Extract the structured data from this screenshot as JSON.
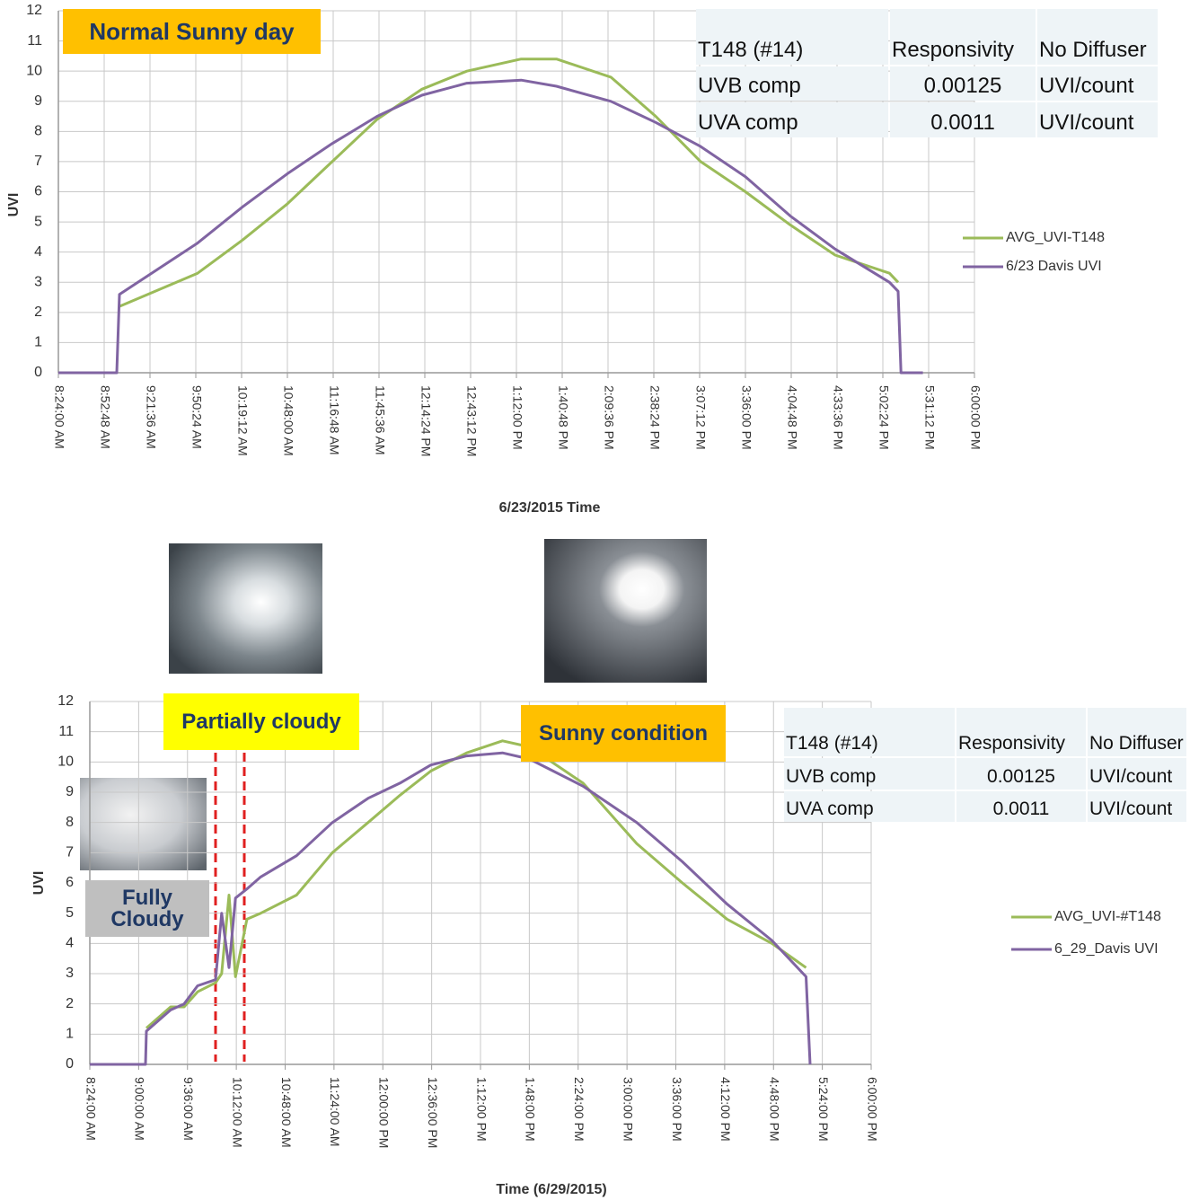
{
  "chart_data": [
    {
      "type": "line",
      "x_label": "6/23/2015 Time",
      "y_label": "UVI",
      "annotations": [
        {
          "text": "Normal Sunny day",
          "color": "#ffc000"
        }
      ],
      "table": {
        "header": [
          "T148 (#14)",
          "Responsivity",
          "No Diffuser"
        ],
        "rows": [
          [
            "UVB comp",
            0.00125,
            "UVI/count"
          ],
          [
            "UVA comp",
            0.0011,
            "UVI/count"
          ]
        ]
      },
      "legend": "right",
      "grid": true,
      "x": [
        8.4,
        9.012,
        9.04,
        9.859,
        10.33,
        10.8,
        11.27,
        11.74,
        12.21,
        12.68,
        13.25,
        13.62,
        14.19,
        14.66,
        15.13,
        15.6,
        16.07,
        16.54,
        17.11,
        17.2,
        17.23,
        17.46
      ],
      "series": [
        {
          "name": "AVG_UVI-T148",
          "color": "#9bbb59",
          "values": [
            null,
            null,
            2.2,
            3.3,
            4.4,
            5.6,
            7.0,
            8.4,
            9.4,
            10.0,
            10.4,
            10.4,
            9.8,
            8.5,
            7.0,
            6.0,
            4.9,
            3.9,
            3.3,
            3.0,
            null,
            null
          ]
        },
        {
          "name": "6/23 Davis UVI",
          "color": "#8064a2",
          "values": [
            0,
            0,
            2.6,
            4.3,
            5.5,
            6.6,
            7.6,
            8.5,
            9.2,
            9.6,
            9.7,
            9.5,
            9.0,
            8.3,
            7.5,
            6.5,
            5.2,
            4.1,
            3.0,
            2.7,
            0,
            0
          ]
        }
      ],
      "xlim": [
        8.4,
        18.0
      ],
      "xticks": [
        {
          "value": 8.4,
          "label": "8:24:00 AM"
        },
        {
          "value": 8.88,
          "label": "8:52:48 AM"
        },
        {
          "value": 9.36,
          "label": "9:21:36 AM"
        },
        {
          "value": 9.84,
          "label": "9:50:24 AM"
        },
        {
          "value": 10.32,
          "label": "10:19:12 AM"
        },
        {
          "value": 10.8,
          "label": "10:48:00 AM"
        },
        {
          "value": 11.28,
          "label": "11:16:48 AM"
        },
        {
          "value": 11.76,
          "label": "11:45:36 AM"
        },
        {
          "value": 12.24,
          "label": "12:14:24 PM"
        },
        {
          "value": 12.72,
          "label": "12:43:12 PM"
        },
        {
          "value": 13.2,
          "label": "1:12:00 PM"
        },
        {
          "value": 13.68,
          "label": "1:40:48 PM"
        },
        {
          "value": 14.16,
          "label": "2:09:36 PM"
        },
        {
          "value": 14.64,
          "label": "2:38:24 PM"
        },
        {
          "value": 15.12,
          "label": "3:07:12 PM"
        },
        {
          "value": 15.6,
          "label": "3:36:00 PM"
        },
        {
          "value": 16.08,
          "label": "4:04:48 PM"
        },
        {
          "value": 16.56,
          "label": "4:33:36 PM"
        },
        {
          "value": 17.04,
          "label": "5:02:24 PM"
        },
        {
          "value": 17.52,
          "label": "5:31:12 PM"
        },
        {
          "value": 18.0,
          "label": "6:00:00 PM"
        }
      ],
      "ylim": [
        0,
        12
      ],
      "yticks": [
        0,
        1,
        2,
        3,
        4,
        5,
        6,
        7,
        8,
        9,
        10,
        11,
        12
      ]
    },
    {
      "type": "line",
      "x_label": "Time (6/29/2015)",
      "y_label": "UVI",
      "annotations": [
        {
          "text": "Partially cloudy",
          "color": "#ffff00"
        },
        {
          "text": "Sunny condition",
          "color": "#ffc000"
        },
        {
          "text": "Fully Cloudy",
          "color": "#bfbfbf"
        }
      ],
      "table": {
        "header": [
          "T148 (#14)",
          "Responsivity",
          "No Diffuser"
        ],
        "rows": [
          [
            "UVB comp",
            0.00125,
            "UVI/count"
          ],
          [
            "UVA comp",
            0.0011,
            "UVI/count"
          ]
        ]
      },
      "legend": "right",
      "grid": true,
      "x": [
        8.4,
        9.084,
        9.095,
        9.393,
        9.559,
        9.724,
        9.945,
        10.02,
        10.11,
        10.19,
        10.33,
        10.5,
        10.94,
        11.38,
        11.82,
        12.21,
        12.59,
        13.03,
        13.47,
        13.8,
        14.46,
        15.12,
        15.68,
        16.23,
        16.78,
        17.2,
        17.25
      ],
      "series": [
        {
          "name": "AVG_UVI-#T148",
          "color": "#9bbb59",
          "values": [
            null,
            null,
            1.2,
            1.9,
            1.9,
            2.4,
            2.7,
            3.0,
            5.6,
            2.9,
            4.8,
            5.0,
            5.6,
            7.0,
            8.0,
            8.9,
            9.7,
            10.3,
            10.7,
            10.5,
            9.3,
            7.3,
            6.0,
            4.8,
            4.0,
            3.2,
            null
          ]
        },
        {
          "name": "6_29_Davis UVI",
          "color": "#8064a2",
          "values": [
            0,
            0,
            1.1,
            1.8,
            2.0,
            2.6,
            2.8,
            5.0,
            3.2,
            5.5,
            5.8,
            6.2,
            6.9,
            8.0,
            8.8,
            9.3,
            9.9,
            10.2,
            10.3,
            10.1,
            9.2,
            8.0,
            6.7,
            5.3,
            4.1,
            2.9,
            0
          ]
        }
      ],
      "xlim": [
        8.4,
        18.0
      ],
      "xticks": [
        {
          "value": 8.4,
          "label": "8:24:00 AM"
        },
        {
          "value": 9.0,
          "label": "9:00:00 AM"
        },
        {
          "value": 9.6,
          "label": "9:36:00 AM"
        },
        {
          "value": 10.2,
          "label": "10:12:00 AM"
        },
        {
          "value": 10.8,
          "label": "10:48:00 AM"
        },
        {
          "value": 11.4,
          "label": "11:24:00 AM"
        },
        {
          "value": 12.0,
          "label": "12:00:00 PM"
        },
        {
          "value": 12.6,
          "label": "12:36:00 PM"
        },
        {
          "value": 13.2,
          "label": "1:12:00 PM"
        },
        {
          "value": 13.8,
          "label": "1:48:00 PM"
        },
        {
          "value": 14.4,
          "label": "2:24:00 PM"
        },
        {
          "value": 15.0,
          "label": "3:00:00 PM"
        },
        {
          "value": 15.6,
          "label": "3:36:00 PM"
        },
        {
          "value": 16.2,
          "label": "4:12:00 PM"
        },
        {
          "value": 16.8,
          "label": "4:48:00 PM"
        },
        {
          "value": 17.4,
          "label": "5:24:00 PM"
        },
        {
          "value": 18.0,
          "label": "6:00:00 PM"
        }
      ],
      "ylim": [
        0,
        12
      ],
      "yticks": [
        0,
        1,
        2,
        3,
        4,
        5,
        6,
        7,
        8,
        9,
        10,
        11,
        12
      ]
    }
  ]
}
